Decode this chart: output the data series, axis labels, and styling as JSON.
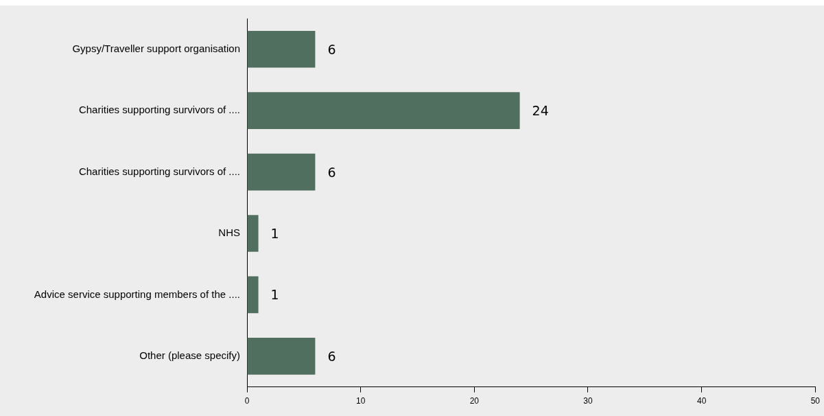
{
  "chart_data": {
    "type": "bar",
    "orientation": "horizontal",
    "categories": [
      "Gypsy/Traveller support organisation",
      "Charities supporting survivors of ....",
      "Charities supporting survivors of ....",
      "NHS",
      "Advice service supporting members of the ....",
      "Other (please specify)"
    ],
    "values": [
      6,
      24,
      6,
      1,
      1,
      6
    ],
    "color": "#516f5f",
    "xlim": [
      0,
      50
    ],
    "xticks": [
      0,
      10,
      20,
      30,
      40,
      50
    ],
    "data_labels": true
  }
}
